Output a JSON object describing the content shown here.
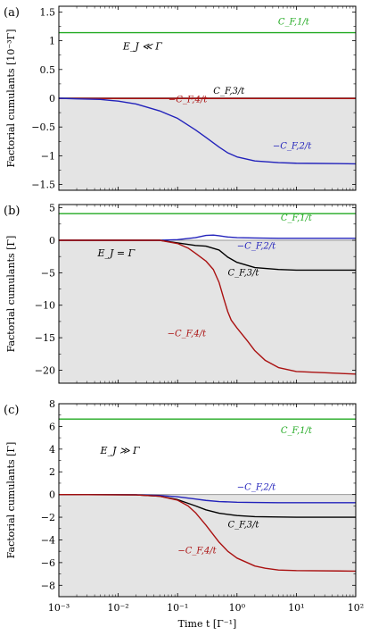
{
  "chart_data": [
    {
      "type": "line",
      "panel_label": "(a)",
      "condition": "E_J ≪ Γ",
      "ylabel": "Factorial cumulants [10⁻³Γ]",
      "xscale": "log",
      "xlim": [
        0.001,
        100
      ],
      "ylim": [
        -1.6,
        1.6
      ],
      "yticks": [
        1.5,
        1,
        0.5,
        0,
        -0.5,
        -1,
        -1.5
      ],
      "ytick_labels": [
        "1.5",
        "1",
        "0.5",
        "0",
        "−0.5",
        "−1",
        "−1.5"
      ],
      "shaded_region": "y < 0",
      "series": [
        {
          "name": "C_F,1/t",
          "label": "C_{F,1}/t",
          "color": "#22aa22",
          "x": [
            0.001,
            100
          ],
          "y": [
            1.14,
            1.14
          ]
        },
        {
          "name": "C_F,3/t",
          "label": "C_{F,3}/t",
          "color": "#000000",
          "x": [
            0.001,
            100
          ],
          "y": [
            0.0,
            0.0
          ]
        },
        {
          "name": "−C_F,4/t",
          "label": "−C_{F,4}/t",
          "color": "#aa1111",
          "x": [
            0.001,
            100
          ],
          "y": [
            -0.004,
            -0.004
          ]
        },
        {
          "name": "−C_F,2/t",
          "label": "−C_{F,2}/t",
          "color": "#2222bb",
          "x": [
            0.001,
            0.002,
            0.005,
            0.01,
            0.02,
            0.05,
            0.1,
            0.2,
            0.3,
            0.5,
            0.7,
            1,
            2,
            5,
            10,
            100
          ],
          "y": [
            0.0,
            -0.01,
            -0.02,
            -0.05,
            -0.1,
            -0.22,
            -0.35,
            -0.55,
            -0.68,
            -0.85,
            -0.95,
            -1.02,
            -1.09,
            -1.12,
            -1.13,
            -1.14
          ]
        }
      ]
    },
    {
      "type": "line",
      "panel_label": "(b)",
      "condition": "E_J = Γ",
      "ylabel": "Factorial cumulants [Γ]",
      "xscale": "log",
      "xlim": [
        0.001,
        100
      ],
      "ylim": [
        -22,
        5.5
      ],
      "yticks": [
        5,
        0,
        -5,
        -10,
        -15,
        -20
      ],
      "ytick_labels": [
        "5",
        "0",
        "−5",
        "−10",
        "−15",
        "−20"
      ],
      "shaded_region": "y < 0",
      "series": [
        {
          "name": "C_F,1/t",
          "label": "C_{F,1}/t",
          "color": "#22aa22",
          "x": [
            0.001,
            100
          ],
          "y": [
            4.1,
            4.1
          ]
        },
        {
          "name": "−C_F,2/t",
          "label": "−C_{F,2}/t",
          "color": "#2222bb",
          "x": [
            0.001,
            0.05,
            0.1,
            0.2,
            0.3,
            0.4,
            0.5,
            0.7,
            1,
            2,
            5,
            100
          ],
          "y": [
            0.0,
            0.0,
            0.1,
            0.4,
            0.75,
            0.8,
            0.7,
            0.5,
            0.4,
            0.35,
            0.3,
            0.3
          ]
        },
        {
          "name": "C_F,3/t",
          "label": "C_{F,3}/t",
          "color": "#000000",
          "x": [
            0.001,
            0.05,
            0.1,
            0.2,
            0.3,
            0.5,
            0.7,
            1,
            2,
            5,
            10,
            100
          ],
          "y": [
            0.0,
            0.0,
            -0.4,
            -0.8,
            -0.9,
            -1.5,
            -2.6,
            -3.4,
            -4.2,
            -4.5,
            -4.6,
            -4.6
          ]
        },
        {
          "name": "−C_F,4/t",
          "label": "−C_{F,4}/t",
          "color": "#aa1111",
          "x": [
            0.001,
            0.05,
            0.1,
            0.15,
            0.2,
            0.3,
            0.4,
            0.5,
            0.6,
            0.7,
            0.8,
            1,
            1.5,
            2,
            3,
            5,
            10,
            100
          ],
          "y": [
            0.0,
            0.0,
            -0.5,
            -1.2,
            -2.0,
            -3.2,
            -4.5,
            -6.5,
            -9.0,
            -11.0,
            -12.3,
            -13.5,
            -15.5,
            -17.0,
            -18.5,
            -19.6,
            -20.2,
            -20.6
          ]
        }
      ]
    },
    {
      "type": "line",
      "panel_label": "(c)",
      "condition": "E_J ≫ Γ",
      "ylabel": "Factorial cumulants [Γ]",
      "xlabel": "Time t [Γ⁻¹]",
      "xscale": "log",
      "xlim": [
        0.001,
        100
      ],
      "ylim": [
        -9,
        8
      ],
      "yticks": [
        8,
        6,
        4,
        2,
        0,
        -2,
        -4,
        -6,
        -8
      ],
      "ytick_labels": [
        "8",
        "6",
        "4",
        "2",
        "0",
        "−2",
        "−4",
        "−6",
        "−8"
      ],
      "xticks": [
        0.001,
        0.01,
        0.1,
        1,
        10,
        100
      ],
      "xtick_labels": [
        "10⁻³",
        "10⁻²",
        "10⁻¹",
        "10⁰",
        "10¹",
        "10²"
      ],
      "shaded_region": "y < 0",
      "series": [
        {
          "name": "C_F,1/t",
          "label": "C_{F,1}/t",
          "color": "#22aa22",
          "x": [
            0.001,
            100
          ],
          "y": [
            6.65,
            6.65
          ]
        },
        {
          "name": "−C_F,2/t",
          "label": "−C_{F,2}/t",
          "color": "#2222bb",
          "x": [
            0.001,
            0.02,
            0.05,
            0.1,
            0.2,
            0.3,
            0.5,
            1,
            2,
            5,
            100
          ],
          "y": [
            0.0,
            -0.02,
            -0.08,
            -0.2,
            -0.4,
            -0.52,
            -0.62,
            -0.68,
            -0.7,
            -0.72,
            -0.72
          ]
        },
        {
          "name": "C_F,3/t",
          "label": "C_{F,3}/t",
          "color": "#000000",
          "x": [
            0.001,
            0.02,
            0.05,
            0.1,
            0.2,
            0.3,
            0.5,
            1,
            2,
            5,
            10,
            100
          ],
          "y": [
            0.0,
            -0.03,
            -0.15,
            -0.45,
            -1.0,
            -1.35,
            -1.65,
            -1.85,
            -1.95,
            -1.98,
            -2.0,
            -2.0
          ]
        },
        {
          "name": "−C_F,4/t",
          "label": "−C_{F,4}/t",
          "color": "#aa1111",
          "x": [
            0.001,
            0.02,
            0.05,
            0.1,
            0.15,
            0.2,
            0.3,
            0.5,
            0.7,
            1,
            2,
            3,
            5,
            10,
            100
          ],
          "y": [
            0.0,
            -0.03,
            -0.15,
            -0.5,
            -1.0,
            -1.6,
            -2.7,
            -4.2,
            -5.0,
            -5.6,
            -6.3,
            -6.5,
            -6.65,
            -6.7,
            -6.75
          ]
        }
      ]
    }
  ]
}
